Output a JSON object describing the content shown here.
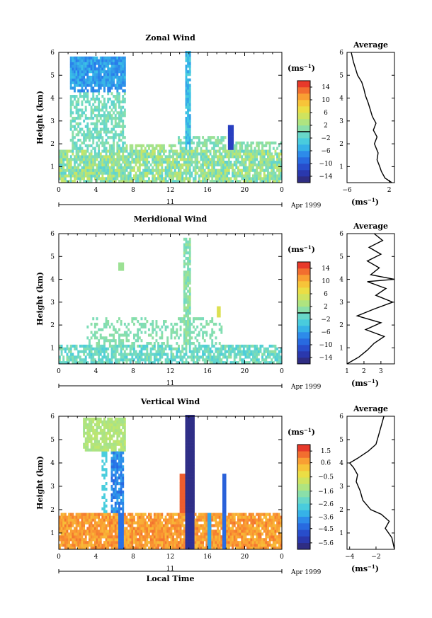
{
  "chart_data": [
    {
      "type": "heatmap",
      "title": "Zonal Wind",
      "ylabel": "Height (km)",
      "xlim": [
        0,
        24
      ],
      "ylim": [
        0.3,
        6
      ],
      "x_ticks": [
        "0",
        "4",
        "8",
        "12",
        "16",
        "20",
        "0"
      ],
      "y_ticks": [
        "1",
        "2",
        "3",
        "4",
        "5",
        "6"
      ],
      "day_label": "11",
      "date_label": "Apr 1999",
      "colorbar": {
        "unit_label": "(ms",
        "unit_exp": "−1",
        "unit_close": ")",
        "range": [
          -16,
          16
        ],
        "ticks": [
          14,
          10,
          6,
          2,
          -2,
          -6,
          -10,
          -14
        ],
        "marker": 0
      },
      "profile": {
        "title": "Average",
        "xlabel_base": "(ms",
        "xlabel_exp": "−1",
        "xlabel_close": ")",
        "xlim": [
          -6,
          3
        ],
        "x_ticks": [
          -6,
          2
        ],
        "y": [
          0.3,
          0.5,
          0.8,
          1.0,
          1.3,
          1.6,
          2.0,
          2.3,
          2.6,
          2.9,
          3.2,
          3.5,
          3.8,
          4.1,
          4.4,
          4.7,
          5.0,
          5.3,
          5.6,
          6.0
        ],
        "x": [
          2.5,
          1.2,
          0.5,
          0.2,
          -0.3,
          -0.1,
          -0.8,
          -0.3,
          -1.0,
          -0.5,
          -1.2,
          -1.6,
          -2.0,
          -2.5,
          -2.8,
          -3.2,
          -4.0,
          -4.4,
          -4.8,
          -5.2
        ]
      }
    },
    {
      "type": "heatmap",
      "title": "Meridional Wind",
      "ylabel": "Height (km)",
      "xlim": [
        0,
        24
      ],
      "ylim": [
        0.3,
        6
      ],
      "x_ticks": [
        "0",
        "4",
        "8",
        "12",
        "16",
        "20",
        "0"
      ],
      "y_ticks": [
        "1",
        "2",
        "3",
        "4",
        "5",
        "6"
      ],
      "day_label": "11",
      "date_label": "Apr 1999",
      "colorbar": {
        "unit_label": "(ms",
        "unit_exp": "−1",
        "unit_close": ")",
        "range": [
          -16,
          16
        ],
        "ticks": [
          14,
          10,
          6,
          2,
          -2,
          -6,
          -10,
          -14
        ],
        "marker": 0
      },
      "profile": {
        "title": "Average",
        "xlabel_base": "(ms",
        "xlabel_exp": "−1",
        "xlabel_close": ")",
        "xlim": [
          1,
          3.8
        ],
        "x_ticks": [
          1,
          2,
          3
        ],
        "y": [
          0.3,
          0.6,
          0.9,
          1.2,
          1.5,
          1.8,
          2.1,
          2.4,
          2.7,
          3.0,
          3.3,
          3.6,
          3.9,
          4.0,
          4.2,
          4.5,
          4.8,
          5.1,
          5.4,
          5.7,
          6.0
        ],
        "x": [
          1.0,
          1.7,
          2.2,
          2.6,
          3.2,
          2.1,
          3.0,
          1.6,
          2.6,
          3.7,
          2.7,
          3.3,
          2.2,
          3.8,
          2.4,
          2.9,
          2.2,
          3.0,
          2.3,
          3.1,
          2.6
        ]
      }
    },
    {
      "type": "heatmap",
      "title": "Vertical Wind",
      "ylabel": "Height (km)",
      "xlabel": "Local Time",
      "xlim": [
        0,
        24
      ],
      "ylim": [
        0.3,
        6
      ],
      "x_ticks": [
        "0",
        "4",
        "8",
        "12",
        "16",
        "20",
        "0"
      ],
      "y_ticks": [
        "1",
        "2",
        "3",
        "4",
        "5",
        "6"
      ],
      "day_label": "11",
      "date_label": "Apr 1999",
      "colorbar": {
        "unit_label": "(ms",
        "unit_exp": "−1",
        "unit_close": ")",
        "range": [
          -6.1,
          2.0
        ],
        "ticks": [
          1.5,
          0.6,
          -0.5,
          -1.6,
          -2.6,
          -3.6,
          -4.5,
          -5.6
        ],
        "marker": null
      },
      "profile": {
        "title": "Average",
        "xlabel_base": "(ms",
        "xlabel_exp": "−1",
        "xlabel_close": ")",
        "xlim": [
          -4.2,
          -0.6
        ],
        "x_ticks": [
          -4,
          -2
        ],
        "y": [
          0.3,
          0.8,
          1.2,
          1.5,
          1.8,
          2.0,
          2.4,
          2.8,
          3.2,
          3.5,
          3.8,
          4.0,
          4.2,
          4.5,
          4.8,
          5.2,
          5.6,
          6.0
        ],
        "x": [
          -0.6,
          -0.8,
          -1.3,
          -1.0,
          -1.6,
          -2.4,
          -3.0,
          -3.2,
          -3.5,
          -3.4,
          -3.7,
          -4.0,
          -3.4,
          -2.6,
          -2.0,
          -1.8,
          -1.6,
          -1.4
        ]
      }
    }
  ]
}
